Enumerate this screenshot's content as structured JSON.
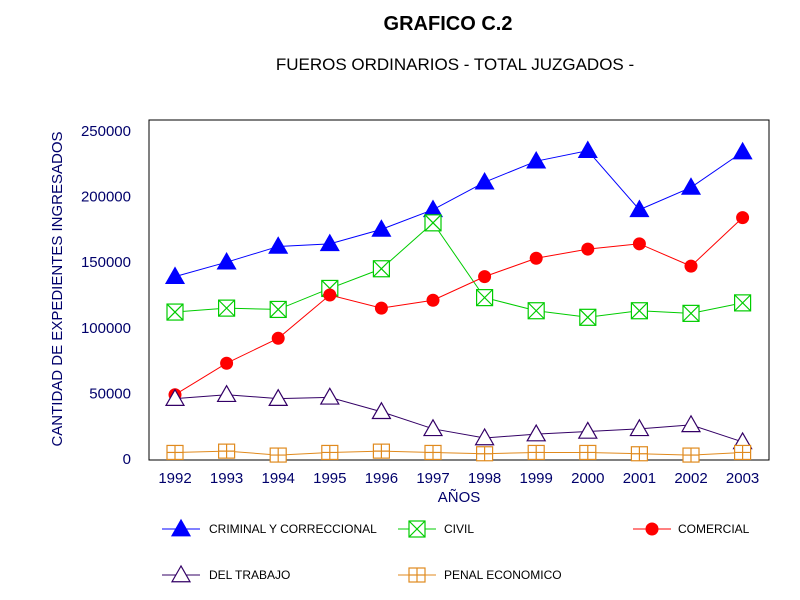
{
  "chart_data": {
    "type": "line",
    "title": "GRAFICO C.2",
    "subtitle": "FUEROS ORDINARIOS - TOTAL JUZGADOS -",
    "xlabel": "AÑOS",
    "ylabel": "CANTIDAD DE EXPEDIENTES INGRESADOS",
    "ylim": [
      0,
      250000
    ],
    "yticks": [
      "0",
      "50000",
      "100000",
      "150000",
      "200000",
      "250000"
    ],
    "categories": [
      "1992",
      "1993",
      "1994",
      "1995",
      "1996",
      "1997",
      "1998",
      "1999",
      "2000",
      "2001",
      "2002",
      "2003"
    ],
    "grid": false,
    "legend_position": "bottom",
    "series": [
      {
        "name": "CRIMINAL Y CORRECCIONAL",
        "color": "#0000ff",
        "marker": "triangle-filled",
        "values": [
          139000,
          150000,
          162000,
          164000,
          175000,
          190000,
          211000,
          227000,
          235000,
          190000,
          207000,
          234000
        ]
      },
      {
        "name": "CIVIL",
        "color": "#00cc00",
        "marker": "square-x",
        "values": [
          112000,
          115000,
          114000,
          130000,
          145000,
          180000,
          123000,
          113000,
          108000,
          113000,
          111000,
          119000
        ]
      },
      {
        "name": "COMERCIAL",
        "color": "#ff0000",
        "marker": "circle-filled",
        "values": [
          49000,
          73000,
          92000,
          125000,
          115000,
          121000,
          139000,
          153000,
          160000,
          164000,
          147000,
          184000
        ]
      },
      {
        "name": "DEL TRABAJO",
        "color": "#330066",
        "marker": "triangle-open",
        "values": [
          46000,
          49000,
          46000,
          47000,
          36000,
          23000,
          16000,
          19000,
          21000,
          23000,
          26000,
          13000
        ]
      },
      {
        "name": "PENAL ECONOMICO",
        "color": "#e08a1e",
        "marker": "square-plus",
        "values": [
          5000,
          6000,
          3000,
          5000,
          6000,
          5000,
          4000,
          5000,
          5000,
          4000,
          3000,
          5000
        ]
      }
    ]
  }
}
